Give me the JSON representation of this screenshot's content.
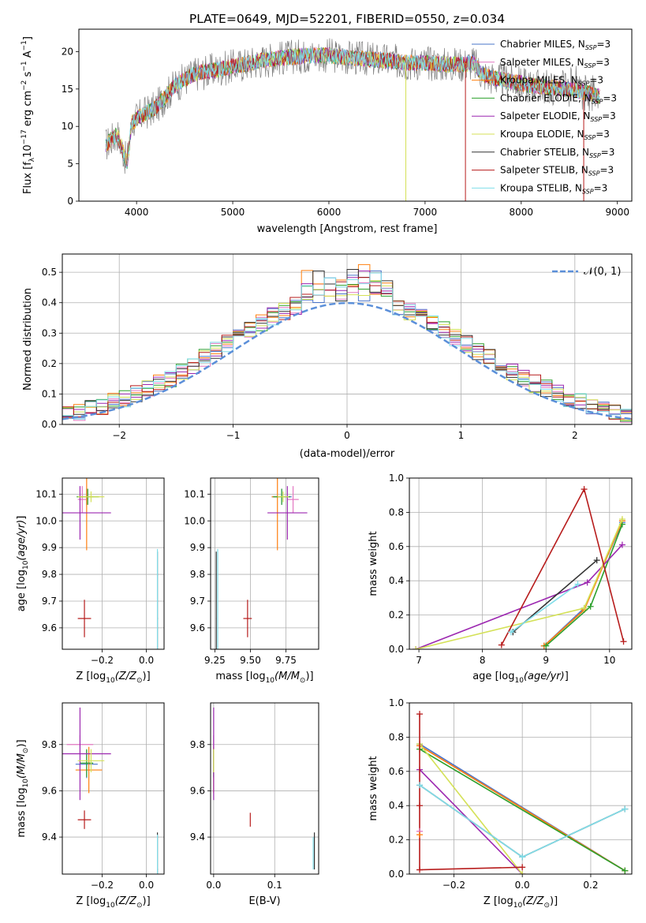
{
  "figure": {
    "title": "PLATE=0649, MJD=52201, FIBERID=0550, z=0.034"
  },
  "models": [
    {
      "name": "Chabrier MILES",
      "color": "#4a74c9"
    },
    {
      "name": "Salpeter MILES",
      "color": "#e377c2"
    },
    {
      "name": "Kroupa MILES",
      "color": "#ff7f0e"
    },
    {
      "name": "Chabrier ELODIE",
      "color": "#2ca02c"
    },
    {
      "name": "Salpeter ELODIE",
      "color": "#9c27b0"
    },
    {
      "name": "Kroupa ELODIE",
      "color": "#d4e157"
    },
    {
      "name": "Chabrier STELIB",
      "color": "#333333"
    },
    {
      "name": "Salpeter STELIB",
      "color": "#b71c1c"
    },
    {
      "name": "Kroupa STELIB",
      "color": "#80deea"
    }
  ],
  "legend_suffix": {
    "prefix": ", N",
    "sub": "SSP",
    "suffix": "=3"
  },
  "chart_data": [
    {
      "id": "spectrum",
      "type": "line",
      "xlabel": "wavelength [Angstrom, rest frame]",
      "ylabel": "Flux [f",
      "ylabel_parts": {
        "f": "f",
        "sub": "λ",
        "mid": "10",
        "exp1": "−17",
        "rest": " erg cm",
        "exp2": "−2",
        "s": " s",
        "exp3": "−1",
        "A": " A",
        "exp4": "−1"
      },
      "xlim": [
        3400,
        9150
      ],
      "ylim": [
        0,
        23
      ],
      "xticks": [
        4000,
        5000,
        6000,
        7000,
        8000,
        9000
      ],
      "yticks": [
        0,
        5,
        10,
        15,
        20
      ],
      "grid": false,
      "legend": "top-right",
      "data_wavelength_range": [
        3680,
        8820
      ],
      "series_note": "nine model spectra overlapping the observed flux",
      "continuum_anchor_points": [
        [
          3680,
          7.5
        ],
        [
          3800,
          9
        ],
        [
          3900,
          5
        ],
        [
          3950,
          10.5
        ],
        [
          4050,
          11.5
        ],
        [
          4200,
          12.5
        ],
        [
          4300,
          14
        ],
        [
          4400,
          15.5
        ],
        [
          4600,
          17
        ],
        [
          4800,
          17.5
        ],
        [
          5000,
          18
        ],
        [
          5200,
          18.5
        ],
        [
          5400,
          19
        ],
        [
          5600,
          19.3
        ],
        [
          5800,
          19.5
        ],
        [
          6000,
          19.5
        ],
        [
          6200,
          19.2
        ],
        [
          6400,
          19
        ],
        [
          6600,
          18.8
        ],
        [
          6800,
          18.5
        ],
        [
          7000,
          18.5
        ],
        [
          7200,
          18.3
        ],
        [
          7400,
          18.3
        ],
        [
          7500,
          18.5
        ],
        [
          7600,
          17
        ],
        [
          7700,
          16.5
        ],
        [
          7900,
          16
        ],
        [
          8100,
          15.5
        ],
        [
          8300,
          15.2
        ],
        [
          8500,
          15
        ],
        [
          8700,
          14.5
        ],
        [
          8820,
          14
        ]
      ]
    },
    {
      "id": "residuals",
      "type": "histogram",
      "xlabel": "(data-model)/error",
      "ylabel": "Normed distribution",
      "xlim": [
        -2.5,
        2.5
      ],
      "ylim": [
        0,
        0.56
      ],
      "xticks": [
        -2,
        -1,
        0,
        1,
        2
      ],
      "yticks": [
        0.0,
        0.1,
        0.2,
        0.3,
        0.4,
        0.5
      ],
      "xtick_labels": [
        "−2",
        "−1",
        "0",
        "1",
        "2"
      ],
      "ytick_labels": [
        "0.0",
        "0.1",
        "0.2",
        "0.3",
        "0.4",
        "0.5"
      ],
      "grid": true,
      "bin_width": 0.1,
      "reference_curve": {
        "label": "𝒩(0, 1)",
        "color": "#5b8fd9",
        "mean": 0,
        "sigma": 1
      }
    },
    {
      "id": "z-age",
      "type": "scatter",
      "xlabel": "Z [log",
      "ylabel": "age  [log",
      "xlim": [
        -0.38,
        0.08
      ],
      "ylim": [
        9.52,
        10.16
      ],
      "xticks": [
        -0.2,
        0.0
      ],
      "xtick_labels": [
        "−0.2",
        "0.0"
      ],
      "yticks": [
        9.6,
        9.7,
        9.8,
        9.9,
        10.0,
        10.1
      ],
      "ytick_labels": [
        "9.6",
        "9.7",
        "9.8",
        "9.9",
        "10.0",
        "10.1"
      ],
      "grid": true,
      "points": [
        {
          "model": 0,
          "x": -0.27,
          "y": 10.09,
          "xerr": 0.03,
          "yerr": 0.03
        },
        {
          "model": 1,
          "x": -0.29,
          "y": 10.08,
          "xerr": 0.02,
          "yerr": 0.05
        },
        {
          "model": 2,
          "x": -0.27,
          "y": 10.09,
          "xerr": 0.03,
          "yerr": 0.2
        },
        {
          "model": 3,
          "x": -0.265,
          "y": 10.09,
          "xerr": 0.05,
          "yerr": 0.03
        },
        {
          "model": 4,
          "x": -0.3,
          "y": 10.03,
          "xerr": 0.14,
          "yerr": 0.1
        },
        {
          "model": 5,
          "x": -0.25,
          "y": 10.09,
          "xerr": 0.06,
          "yerr": 0.02
        },
        {
          "model": 6,
          "x": 0.05,
          "y": 9.635,
          "xerr": 0.002,
          "yerr": 0.25
        },
        {
          "model": 7,
          "x": -0.28,
          "y": 9.635,
          "xerr": 0.03,
          "yerr": 0.07
        },
        {
          "model": 8,
          "x": 0.05,
          "y": 9.625,
          "xerr": 0.002,
          "yerr": 0.27
        }
      ]
    },
    {
      "id": "mass-age",
      "type": "scatter",
      "xlabel": "mass [log",
      "ylabel": "",
      "xlim": [
        9.22,
        9.98
      ],
      "ylim": [
        9.52,
        10.16
      ],
      "xticks": [
        9.25,
        9.5,
        9.75
      ],
      "xtick_labels": [
        "9.25",
        "9.50",
        "9.75"
      ],
      "yticks": [
        9.6,
        9.7,
        9.8,
        9.9,
        10.0,
        10.1
      ],
      "ytick_labels": [
        "9.6",
        "9.7",
        "9.8",
        "9.9",
        "10.0",
        "10.1"
      ],
      "grid": true,
      "points": [
        {
          "model": 0,
          "x": 9.72,
          "y": 10.09,
          "xerr": 0.07,
          "yerr": 0.03
        },
        {
          "model": 1,
          "x": 9.8,
          "y": 10.08,
          "xerr": 0.04,
          "yerr": 0.05
        },
        {
          "model": 2,
          "x": 9.69,
          "y": 10.09,
          "xerr": 0.04,
          "yerr": 0.2
        },
        {
          "model": 3,
          "x": 9.72,
          "y": 10.09,
          "xerr": 0.06,
          "yerr": 0.03
        },
        {
          "model": 4,
          "x": 9.76,
          "y": 10.03,
          "xerr": 0.14,
          "yerr": 0.1
        },
        {
          "model": 5,
          "x": 9.73,
          "y": 10.09,
          "xerr": 0.04,
          "yerr": 0.02
        },
        {
          "model": 6,
          "x": 9.26,
          "y": 9.635,
          "xerr": 0.002,
          "yerr": 0.25
        },
        {
          "model": 7,
          "x": 9.48,
          "y": 9.635,
          "xerr": 0.03,
          "yerr": 0.07
        },
        {
          "model": 8,
          "x": 9.27,
          "y": 9.625,
          "xerr": 0.002,
          "yerr": 0.27
        }
      ]
    },
    {
      "id": "age-weight",
      "type": "line",
      "xlabel": "age  [log",
      "ylabel": "mass weight",
      "xlim": [
        6.85,
        10.35
      ],
      "ylim": [
        0,
        1.0
      ],
      "xticks": [
        7,
        8,
        9,
        10
      ],
      "xtick_labels": [
        "7",
        "8",
        "9",
        "10"
      ],
      "yticks": [
        0.0,
        0.2,
        0.4,
        0.6,
        0.8,
        1.0
      ],
      "ytick_labels": [
        "0.0",
        "0.2",
        "0.4",
        "0.6",
        "0.8",
        "1.0"
      ],
      "grid": true,
      "series": [
        {
          "model": 0,
          "x": [
            8.97,
            9.6,
            10.2
          ],
          "y": [
            0.02,
            0.24,
            0.74
          ]
        },
        {
          "model": 1,
          "x": [
            8.97,
            9.6,
            10.2
          ],
          "y": [
            0.02,
            0.23,
            0.75
          ]
        },
        {
          "model": 2,
          "x": [
            8.97,
            9.6,
            10.2
          ],
          "y": [
            0.02,
            0.23,
            0.75
          ]
        },
        {
          "model": 3,
          "x": [
            9.0,
            9.7,
            10.2
          ],
          "y": [
            0.02,
            0.25,
            0.73
          ]
        },
        {
          "model": 4,
          "x": [
            6.95,
            9.65,
            10.2
          ],
          "y": [
            0.0,
            0.39,
            0.61
          ]
        },
        {
          "model": 5,
          "x": [
            6.95,
            9.6,
            10.2
          ],
          "y": [
            0.0,
            0.24,
            0.76
          ]
        },
        {
          "model": 6,
          "x": [
            8.48,
            9.8
          ],
          "y": [
            0.1,
            0.52
          ]
        },
        {
          "model": 7,
          "x": [
            8.3,
            9.6,
            10.22
          ],
          "y": [
            0.025,
            0.935,
            0.045
          ]
        },
        {
          "model": 8,
          "x": [
            8.45,
            9.5
          ],
          "y": [
            0.1,
            0.38
          ]
        }
      ]
    },
    {
      "id": "z-mass",
      "type": "scatter",
      "xlabel": "Z [log",
      "ylabel": "mass [log",
      "xlim": [
        -0.38,
        0.08
      ],
      "ylim": [
        9.24,
        9.98
      ],
      "xticks": [
        -0.2,
        0.0
      ],
      "xtick_labels": [
        "−0.2",
        "0.0"
      ],
      "yticks": [
        9.4,
        9.6,
        9.8
      ],
      "ytick_labels": [
        "9.4",
        "9.6",
        "9.8"
      ],
      "grid": true,
      "points": [
        {
          "model": 0,
          "x": -0.27,
          "y": 9.715,
          "xerr": 0.05,
          "yerr": 0.06
        },
        {
          "model": 1,
          "x": -0.3,
          "y": 9.8,
          "xerr": 0.06,
          "yerr": 0.04
        },
        {
          "model": 2,
          "x": -0.26,
          "y": 9.69,
          "xerr": 0.06,
          "yerr": 0.1
        },
        {
          "model": 3,
          "x": -0.27,
          "y": 9.72,
          "xerr": 0.03,
          "yerr": 0.06
        },
        {
          "model": 4,
          "x": -0.3,
          "y": 9.76,
          "xerr": 0.14,
          "yerr": 0.2
        },
        {
          "model": 5,
          "x": -0.25,
          "y": 9.73,
          "xerr": 0.06,
          "yerr": 0.05
        },
        {
          "model": 6,
          "x": 0.05,
          "y": 9.26,
          "xerr": 0.002,
          "yerr": 0.16
        },
        {
          "model": 7,
          "x": -0.28,
          "y": 9.475,
          "xerr": 0.03,
          "yerr": 0.04
        },
        {
          "model": 8,
          "x": 0.05,
          "y": 9.27,
          "xerr": 0.002,
          "yerr": 0.14
        }
      ]
    },
    {
      "id": "ebv-mass",
      "type": "scatter",
      "xlabel": "E(B-V)",
      "ylabel": "",
      "xlim": [
        -0.005,
        0.172
      ],
      "ylim": [
        9.24,
        9.98
      ],
      "xticks": [
        0.0,
        0.1
      ],
      "xtick_labels": [
        "0.0",
        "0.1"
      ],
      "yticks": [
        9.4,
        9.6,
        9.8
      ],
      "ytick_labels": [
        "9.4",
        "9.6",
        "9.8"
      ],
      "grid": true,
      "points": [
        {
          "model": 0,
          "x": 0.0,
          "y": 9.715,
          "xerr": 0,
          "yerr": 0.06
        },
        {
          "model": 1,
          "x": 0.0,
          "y": 9.8,
          "xerr": 0,
          "yerr": 0.04
        },
        {
          "model": 2,
          "x": 0.0,
          "y": 9.69,
          "xerr": 0,
          "yerr": 0.1
        },
        {
          "model": 3,
          "x": 0.0,
          "y": 9.72,
          "xerr": 0,
          "yerr": 0.06
        },
        {
          "model": 4,
          "x": 0.0,
          "y": 9.76,
          "xerr": 0,
          "yerr": 0.2
        },
        {
          "model": 5,
          "x": 0.0,
          "y": 9.73,
          "xerr": 0,
          "yerr": 0.05
        },
        {
          "model": 6,
          "x": 0.165,
          "y": 9.34,
          "xerr": 0,
          "yerr": 0.08
        },
        {
          "model": 7,
          "x": 0.06,
          "y": 9.475,
          "xerr": 0,
          "yerr": 0.03
        },
        {
          "model": 8,
          "x": 0.163,
          "y": 9.33,
          "xerr": 0,
          "yerr": 0.07
        }
      ]
    },
    {
      "id": "z-weight",
      "type": "line",
      "xlabel": "Z [log",
      "ylabel": "mass weight",
      "xlim": [
        -0.33,
        0.32
      ],
      "ylim": [
        0,
        1.0
      ],
      "xticks": [
        -0.2,
        0.0,
        0.2
      ],
      "xtick_labels": [
        "−0.2",
        "0.0",
        "0.2"
      ],
      "yticks": [
        0.0,
        0.2,
        0.4,
        0.6,
        0.8,
        1.0
      ],
      "ytick_labels": [
        "0.0",
        "0.2",
        "0.4",
        "0.6",
        "0.8",
        "1.0"
      ],
      "grid": true,
      "series": [
        {
          "model": 0,
          "x": [
            -0.3,
            0.3
          ],
          "y": [
            0.76,
            0.02
          ]
        },
        {
          "model": 1,
          "x": [
            -0.3,
            0.3
          ],
          "y": [
            0.75,
            0.02
          ]
        },
        {
          "model": 2,
          "x": [
            -0.3,
            0.3
          ],
          "y": [
            0.75,
            0.02
          ]
        },
        {
          "model": 3,
          "x": [
            -0.3,
            0.3
          ],
          "y": [
            0.73,
            0.02
          ]
        },
        {
          "model": 4,
          "x": [
            -0.3,
            0.0
          ],
          "y": [
            0.61,
            0.0
          ]
        },
        {
          "model": 5,
          "x": [
            -0.3,
            0.0
          ],
          "y": [
            0.76,
            0.0
          ]
        },
        {
          "model": 6,
          "x": [
            -0.3,
            0.0,
            0.3
          ],
          "y": [
            0.52,
            0.1,
            0.38
          ]
        },
        {
          "model": 7,
          "x": [
            -0.3,
            -0.3,
            0.0
          ],
          "y": [
            0.935,
            0.025,
            0.04
          ]
        },
        {
          "model": 8,
          "x": [
            -0.3,
            0.0,
            0.3
          ],
          "y": [
            0.52,
            0.1,
            0.38
          ]
        }
      ],
      "extra_markers": [
        {
          "model": 7,
          "x": -0.3,
          "y": 0.4
        },
        {
          "model": 1,
          "x": -0.3,
          "y": 0.25
        },
        {
          "model": 2,
          "x": -0.3,
          "y": 0.23
        }
      ]
    }
  ]
}
